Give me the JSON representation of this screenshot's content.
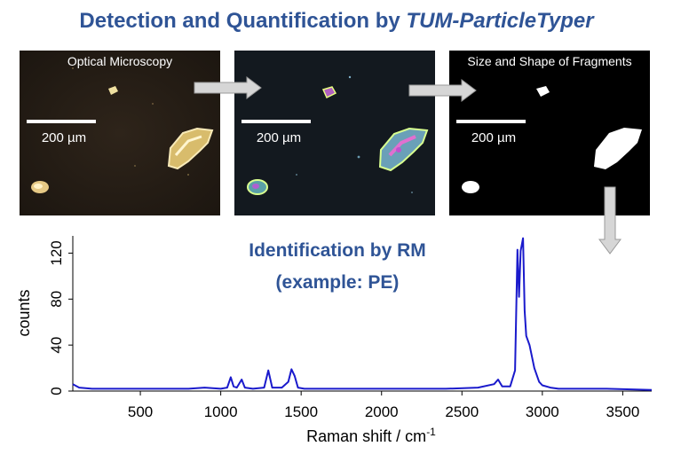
{
  "title": {
    "main": "Detection and Quantification by ",
    "italic": "TUM-ParticleTyper"
  },
  "panels": [
    {
      "label": "Optical Microscopy",
      "scale": "200 µm"
    },
    {
      "label": "",
      "scale": "200 µm"
    },
    {
      "label": "Size and Shape of Fragments",
      "scale": "200 µm"
    }
  ],
  "identification": {
    "line1": "Identification by RM",
    "line2": "(example: PE)"
  },
  "colors": {
    "title": "#2f5496",
    "spectrum": "#1a1acc",
    "arrow": "#d4d4d4"
  },
  "chart_data": {
    "type": "line",
    "title": "",
    "xlabel": "Raman shift / cm",
    "xlabel_superscript": "-1",
    "ylabel": "counts",
    "xlim": [
      80,
      3680
    ],
    "ylim": [
      0,
      135
    ],
    "xticks": [
      500,
      1000,
      1500,
      2000,
      2500,
      3000,
      3500
    ],
    "yticks": [
      0,
      40,
      80,
      120
    ],
    "grid": false,
    "series": [
      {
        "name": "",
        "color": "#1a1acc",
        "x": [
          80,
          120,
          200,
          300,
          400,
          500,
          600,
          700,
          800,
          900,
          1000,
          1040,
          1062,
          1080,
          1100,
          1130,
          1150,
          1200,
          1270,
          1296,
          1320,
          1380,
          1420,
          1440,
          1460,
          1480,
          1520,
          1600,
          1800,
          2000,
          2200,
          2400,
          2600,
          2700,
          2725,
          2750,
          2800,
          2830,
          2845,
          2855,
          2865,
          2880,
          2890,
          2900,
          2920,
          2950,
          2980,
          3000,
          3050,
          3100,
          3200,
          3400,
          3680
        ],
        "y": [
          6,
          3,
          2,
          2,
          2,
          2,
          2,
          2,
          2,
          3,
          2,
          3,
          12,
          4,
          3,
          10,
          3,
          2,
          3,
          18,
          3,
          3,
          8,
          19,
          13,
          3,
          2,
          2,
          2,
          2,
          2,
          2,
          3,
          6,
          10,
          4,
          4,
          18,
          123,
          82,
          122,
          133,
          70,
          48,
          40,
          20,
          8,
          5,
          3,
          2,
          2,
          2,
          1
        ]
      }
    ]
  }
}
